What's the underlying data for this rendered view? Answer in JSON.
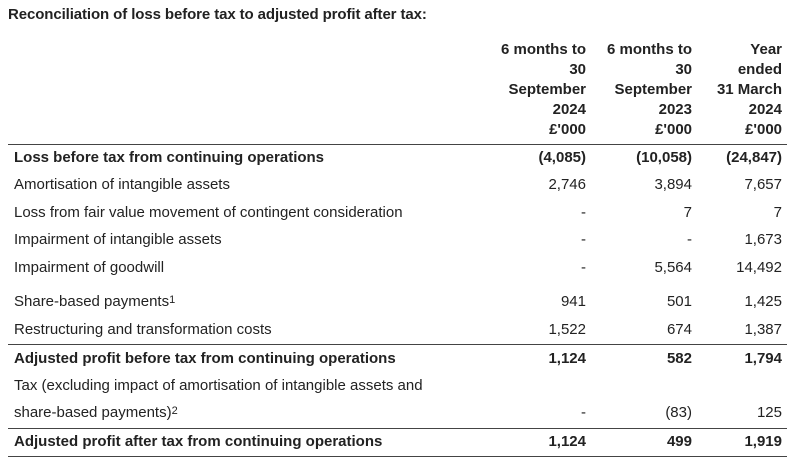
{
  "title": "Reconciliation of loss before tax to adjusted profit after tax:",
  "columns": [
    [
      "6 months to",
      "30",
      "September",
      "2024",
      "£'000"
    ],
    [
      "6 months to",
      "30",
      "September",
      "2023",
      "£'000"
    ],
    [
      "Year",
      "ended",
      "31 March",
      "2024",
      "£'000"
    ]
  ],
  "rows": [
    {
      "label": "Loss before tax from continuing operations",
      "values": [
        "(4,085)",
        "(10,058)",
        "(24,847)"
      ],
      "bold": true
    },
    {
      "label": "Amortisation of intangible assets",
      "values": [
        "2,746",
        "3,894",
        "7,657"
      ]
    },
    {
      "label": "Loss from fair value movement of contingent consideration",
      "values": [
        "-",
        "7",
        "7"
      ]
    },
    {
      "label": "Impairment of intangible assets",
      "values": [
        "-",
        "-",
        "1,673"
      ]
    },
    {
      "label": "Impairment of goodwill",
      "values": [
        "-",
        "5,564",
        "14,492"
      ]
    },
    {
      "label": "Share-based payments",
      "sup": "1",
      "values": [
        "941",
        "501",
        "1,425"
      ]
    },
    {
      "label": "Restructuring and transformation costs",
      "values": [
        "1,522",
        "674",
        "1,387"
      ]
    },
    {
      "label": "Adjusted profit before tax from continuing operations",
      "values": [
        "1,124",
        "582",
        "1,794"
      ],
      "bold": true
    },
    {
      "label": "Tax (excluding impact of amortisation of intangible assets and",
      "label2": "share-based payments)",
      "sup": "2",
      "values": [
        "-",
        "(83)",
        "125"
      ]
    },
    {
      "label": "Adjusted profit after tax from continuing operations",
      "values": [
        "1,124",
        "499",
        "1,919"
      ],
      "bold": true
    }
  ]
}
